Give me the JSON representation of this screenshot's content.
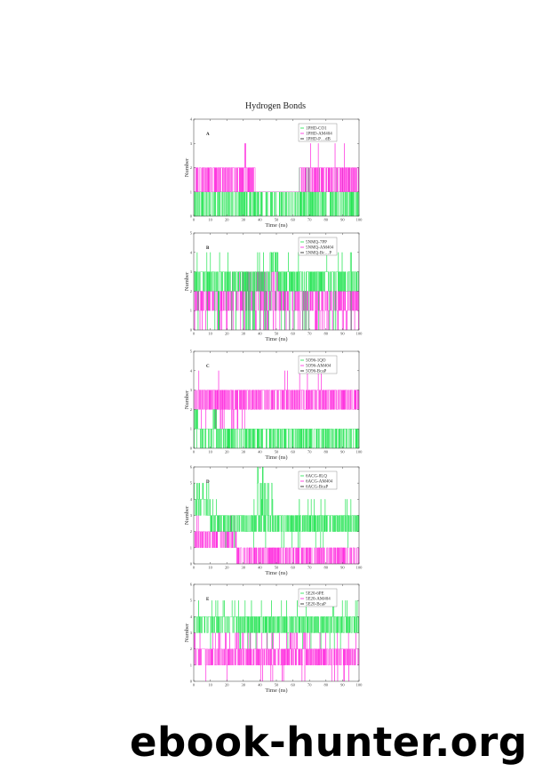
{
  "figure": {
    "title": "Hydrogen Bonds",
    "colors": {
      "green": "#19e34a",
      "magenta": "#ff22dd",
      "black": "#111111",
      "frame": "#555555"
    }
  },
  "watermark": {
    "text": "ebook-hunter.org"
  },
  "panels": [
    {
      "letter": "A",
      "ylabel": "Number",
      "xlabel": "Time (ns)",
      "yticks": [
        "0",
        "1",
        "2",
        "3",
        "4"
      ],
      "xticks": [
        "0",
        "10",
        "20",
        "30",
        "40",
        "50",
        "60",
        "70",
        "80",
        "90",
        "100"
      ],
      "legend": [
        "1PHD-CO1",
        "1PHD-AM404",
        "1PHD-P…dB"
      ]
    },
    {
      "letter": "B",
      "ylabel": "Number",
      "xlabel": "Time (ns)",
      "yticks": [
        "0",
        "1",
        "2",
        "3",
        "4",
        "5"
      ],
      "xticks": [
        "0",
        "10",
        "20",
        "30",
        "40",
        "50",
        "60",
        "70",
        "80",
        "90",
        "100"
      ],
      "legend": [
        "5NMQ-7PP",
        "5NMQ-AM404",
        "5NMQ-Bc…P"
      ]
    },
    {
      "letter": "C",
      "ylabel": "Number",
      "xlabel": "Time (ns)",
      "yticks": [
        "0",
        "1",
        "2",
        "3",
        "4",
        "5"
      ],
      "xticks": [
        "0",
        "10",
        "20",
        "30",
        "40",
        "50",
        "60",
        "70",
        "80",
        "90",
        "100"
      ],
      "legend": [
        "5O96-1QO",
        "5O96-AM404",
        "5O96-BcaP"
      ]
    },
    {
      "letter": "D",
      "ylabel": "Number",
      "xlabel": "Time (ns)",
      "yticks": [
        "0",
        "1",
        "2",
        "3",
        "4",
        "5",
        "6"
      ],
      "xticks": [
        "0",
        "10",
        "20",
        "30",
        "40",
        "50",
        "60",
        "70",
        "80",
        "90",
        "100"
      ],
      "legend": [
        "6ACG-8LQ",
        "6ACG-AM404",
        "6ACG-BcaP"
      ]
    },
    {
      "letter": "E",
      "ylabel": "Number",
      "xlabel": "Time (ns)",
      "yticks": [
        "0",
        "1",
        "2",
        "3",
        "4",
        "5",
        "6"
      ],
      "xticks": [
        "0",
        "10",
        "20",
        "30",
        "40",
        "50",
        "60",
        "70",
        "80",
        "90",
        "100"
      ],
      "legend": [
        "5E20-6PE",
        "5E20-AM404",
        "5E20-BcaP"
      ]
    }
  ],
  "chart_data": [
    {
      "type": "line",
      "title": "Hydrogen Bonds (A)",
      "xlabel": "Time (ns)",
      "ylabel": "Number",
      "xlim": [
        0,
        100
      ],
      "ylim": [
        0,
        4
      ],
      "grid": false,
      "legend_position": "upper right",
      "series": [
        {
          "name": "1PHD-CO1",
          "color": "#19e34a",
          "typical_range": [
            0,
            1
          ],
          "max": 2,
          "note": "mostly 0-1 fluctuation, sparse 2 spikes near 58 and 65-95 ns"
        },
        {
          "name": "1PHD-AM404",
          "color": "#ff22dd",
          "typical_range": [
            1,
            2
          ],
          "max": 3,
          "note": "1-2 for 0-35 ns and 65-100 ns; spikes to 3 near 31 and 70-97 ns; drops to ~1 between 37-63 ns"
        },
        {
          "name": "1PHD-P…dB",
          "color": "#111111",
          "note": "not visibly plotted"
        }
      ]
    },
    {
      "type": "line",
      "title": "Hydrogen Bonds (B)",
      "xlabel": "Time (ns)",
      "ylabel": "Number",
      "xlim": [
        0,
        100
      ],
      "ylim": [
        0,
        5
      ],
      "grid": false,
      "legend_position": "upper right",
      "series": [
        {
          "name": "5NMQ-7PP",
          "color": "#19e34a",
          "typical_range": [
            2,
            3
          ],
          "max": 4,
          "note": "mostly 2-3 with frequent spikes to 4 (e.g. 2, 12, 30, 43, 47-50, 84 ns) and dips to 0"
        },
        {
          "name": "5NMQ-AM404",
          "color": "#ff22dd",
          "typical_range": [
            1,
            2
          ],
          "max": 3,
          "note": "1-2 with excursions to 3 between 20-50 ns; frequent dips to 0"
        },
        {
          "name": "5NMQ-Bc…P",
          "color": "#111111",
          "note": "not visibly plotted"
        }
      ]
    },
    {
      "type": "line",
      "title": "Hydrogen Bonds (C)",
      "xlabel": "Time (ns)",
      "ylabel": "Number",
      "xlim": [
        0,
        100
      ],
      "ylim": [
        0,
        5
      ],
      "grid": false,
      "legend_position": "upper right",
      "series": [
        {
          "name": "5O96-1QO",
          "color": "#19e34a",
          "typical_range": [
            0,
            1
          ],
          "max": 2,
          "note": "0-1 throughout; brief 2 near 2 and 12 ns"
        },
        {
          "name": "5O96-AM404",
          "color": "#ff22dd",
          "typical_range": [
            2,
            3
          ],
          "max": 4,
          "note": "2-3 throughout; spikes to 4 at ~3, 6, 8, 15, 23, 62, 73, 78 ns; dips to 1 in first 40 ns"
        },
        {
          "name": "5O96-BcaP",
          "color": "#111111",
          "note": "not visibly plotted"
        }
      ]
    },
    {
      "type": "line",
      "title": "Hydrogen Bonds (D)",
      "xlabel": "Time (ns)",
      "ylabel": "Number",
      "xlim": [
        0,
        100
      ],
      "ylim": [
        0,
        6
      ],
      "grid": false,
      "legend_position": "upper right",
      "series": [
        {
          "name": "6ACG-8LQ",
          "color": "#19e34a",
          "typical_range": [
            2,
            3
          ],
          "max": 5,
          "note": "3-5 during 0-10 ns, 2-3 afterwards; bursts to 5 near 38-48 ns; spikes to 4 scattered"
        },
        {
          "name": "6ACG-AM404",
          "color": "#ff22dd",
          "typical_range": [
            0,
            2
          ],
          "max": 3,
          "note": "1-2 for 0-26 ns then mostly 0-1 with intermittent spikes"
        },
        {
          "name": "6ACG-BcaP",
          "color": "#111111",
          "note": "not visibly plotted"
        }
      ]
    },
    {
      "type": "line",
      "title": "Hydrogen Bonds (E)",
      "xlabel": "Time (ns)",
      "ylabel": "Number",
      "xlim": [
        0,
        100
      ],
      "ylim": [
        0,
        6
      ],
      "grid": false,
      "legend_position": "upper right",
      "series": [
        {
          "name": "5E20-6PE",
          "color": "#19e34a",
          "typical_range": [
            3,
            4
          ],
          "max": 5,
          "note": "3-4 throughout with spikes to 5 (e.g. 8, 17, 31, 35, 45, 58, 72, 90-99 ns), dips to 2"
        },
        {
          "name": "5E20-AM404",
          "color": "#ff22dd",
          "typical_range": [
            1,
            2
          ],
          "max": 3,
          "note": "1-2 throughout with excursions to 3 and dips to 0"
        },
        {
          "name": "5E20-BcaP",
          "color": "#111111",
          "note": "not visibly plotted"
        }
      ]
    }
  ]
}
